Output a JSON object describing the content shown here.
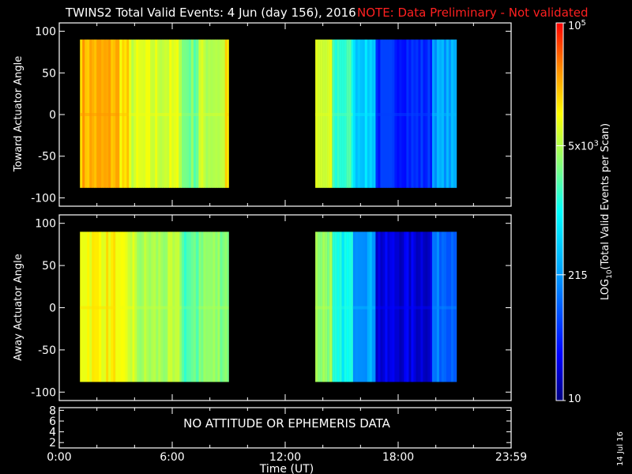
{
  "header": {
    "title": "TWINS2  Total Valid Events:  4 Jun (day 156), 2016",
    "note": "NOTE: Data Preliminary - Not validated",
    "note_color": "#ff2020"
  },
  "footer": {
    "date_stamp": "14 Jul 16",
    "bottom_message": "NO ATTITUDE OR EPHEMERIS DATA"
  },
  "chart_data": [
    {
      "type": "heatmap",
      "panel": "top",
      "ylabel": "Toward Actuator Angle",
      "ylim": [
        -110,
        110
      ],
      "yticks": [
        "100",
        "50",
        "0",
        "-50",
        "-100"
      ],
      "xlim_hours": [
        0,
        24
      ],
      "angle_range": [
        -88,
        90
      ],
      "segments": [
        {
          "start_hour": 1.1,
          "end_hour": 3.2,
          "log_level": 4.35
        },
        {
          "start_hour": 3.2,
          "end_hour": 3.7,
          "log_level": 4.15
        },
        {
          "start_hour": 3.7,
          "end_hour": 6.5,
          "log_level": 3.85
        },
        {
          "start_hour": 6.5,
          "end_hour": 7.4,
          "log_level": 3.45
        },
        {
          "start_hour": 7.4,
          "end_hour": 8.8,
          "log_level": 3.75
        },
        {
          "start_hour": 8.8,
          "end_hour": 9.0,
          "log_level": 4.1
        },
        {
          "start_hour": 13.6,
          "end_hour": 14.5,
          "log_level": 3.8
        },
        {
          "start_hour": 14.5,
          "end_hour": 15.6,
          "log_level": 3.2
        },
        {
          "start_hour": 15.6,
          "end_hour": 16.8,
          "log_level": 2.7
        },
        {
          "start_hour": 16.8,
          "end_hour": 19.8,
          "log_level": 1.7
        },
        {
          "start_hour": 19.8,
          "end_hour": 21.1,
          "log_level": 2.4
        }
      ]
    },
    {
      "type": "heatmap",
      "panel": "middle",
      "ylabel": "Away Actuator Angle",
      "ylim": [
        -110,
        110
      ],
      "yticks": [
        "100",
        "50",
        "0",
        "-50",
        "-100"
      ],
      "xlim_hours": [
        0,
        24
      ],
      "angle_range": [
        -88,
        90
      ],
      "segments": [
        {
          "start_hour": 1.1,
          "end_hour": 3.0,
          "log_level": 4.05
        },
        {
          "start_hour": 3.0,
          "end_hour": 4.0,
          "log_level": 3.85
        },
        {
          "start_hour": 4.0,
          "end_hour": 6.5,
          "log_level": 3.65
        },
        {
          "start_hour": 6.5,
          "end_hour": 7.4,
          "log_level": 3.3
        },
        {
          "start_hour": 7.4,
          "end_hour": 9.0,
          "log_level": 3.55
        },
        {
          "start_hour": 13.6,
          "end_hour": 14.5,
          "log_level": 3.6
        },
        {
          "start_hour": 14.5,
          "end_hour": 15.6,
          "log_level": 3.0
        },
        {
          "start_hour": 15.6,
          "end_hour": 16.8,
          "log_level": 2.4
        },
        {
          "start_hour": 16.8,
          "end_hour": 19.8,
          "log_level": 1.35
        },
        {
          "start_hour": 19.8,
          "end_hour": 21.1,
          "log_level": 2.1
        }
      ]
    },
    {
      "type": "line",
      "panel": "bottom",
      "ylim": [
        1,
        8.5
      ],
      "yticks": [
        "8",
        "6",
        "4",
        "2"
      ],
      "message": "NO ATTITUDE OR EPHEMERIS DATA",
      "xlabel": "Time (UT)",
      "xticks": [
        "0:00",
        "6:00",
        "12:00",
        "18:00",
        "23:59"
      ]
    },
    {
      "type": "colorbar",
      "label_main": "LOG",
      "label_sub": "10",
      "label_rest": "(Total Valid  Events  per Scan)",
      "scale": "log",
      "range": [
        10,
        100000
      ],
      "ticks": [
        {
          "base": "10",
          "exp": "5",
          "log_level": 5.0
        },
        {
          "base": "5x10",
          "exp": "3",
          "log_level": 3.699
        },
        {
          "base": "215",
          "exp": "",
          "log_level": 2.332
        },
        {
          "base": "10",
          "exp": "",
          "log_level": 1.0
        }
      ]
    }
  ]
}
